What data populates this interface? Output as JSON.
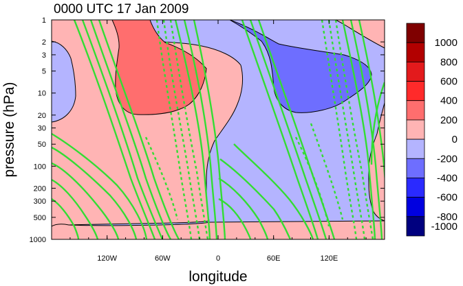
{
  "chart_data": {
    "type": "contour",
    "title": "0000 UTC 17 Jan 2009",
    "xlabel": "longitude",
    "ylabel": "pressure (hPa)",
    "y_scale": "log",
    "y_reversed": true,
    "ylim": [
      1000,
      1
    ],
    "xlim": [
      -180,
      180
    ],
    "x_ticks": [
      {
        "value": -120,
        "label": "120W"
      },
      {
        "value": -60,
        "label": "60W"
      },
      {
        "value": 0,
        "label": "0"
      },
      {
        "value": 60,
        "label": "60E"
      },
      {
        "value": 120,
        "label": "120E"
      }
    ],
    "y_ticks": [
      {
        "value": 1,
        "label": "1"
      },
      {
        "value": 2,
        "label": "2"
      },
      {
        "value": 3,
        "label": "3"
      },
      {
        "value": 5,
        "label": "5"
      },
      {
        "value": 10,
        "label": "10"
      },
      {
        "value": 20,
        "label": "20"
      },
      {
        "value": 30,
        "label": "30"
      },
      {
        "value": 50,
        "label": "50"
      },
      {
        "value": 100,
        "label": "100"
      },
      {
        "value": 200,
        "label": "200"
      },
      {
        "value": 300,
        "label": "300"
      },
      {
        "value": 500,
        "label": "500"
      },
      {
        "value": 1000,
        "label": "1000"
      }
    ],
    "colorbar": {
      "levels": [
        "1000",
        "800",
        "600",
        "400",
        "200",
        "0",
        "-200",
        "-400",
        "-600",
        "-800",
        "-1000"
      ],
      "colors": [
        "#7f0000",
        "#b20000",
        "#e31a1c",
        "#ff2a2a",
        "#ff6e6e",
        "#ffb4b4",
        "#b4b4ff",
        "#6e6eff",
        "#2a2aff",
        "#0000e0",
        "#00007f"
      ]
    },
    "fill_colors": {
      "positive": "#ffb4b4",
      "negative": "#b4b4ff",
      "strong_positive": "#ff6e6e",
      "strong_negative": "#6e6eff"
    },
    "line_contours": {
      "color": "#33dd33",
      "negative_style": "dashed",
      "positive_style": "solid"
    }
  }
}
